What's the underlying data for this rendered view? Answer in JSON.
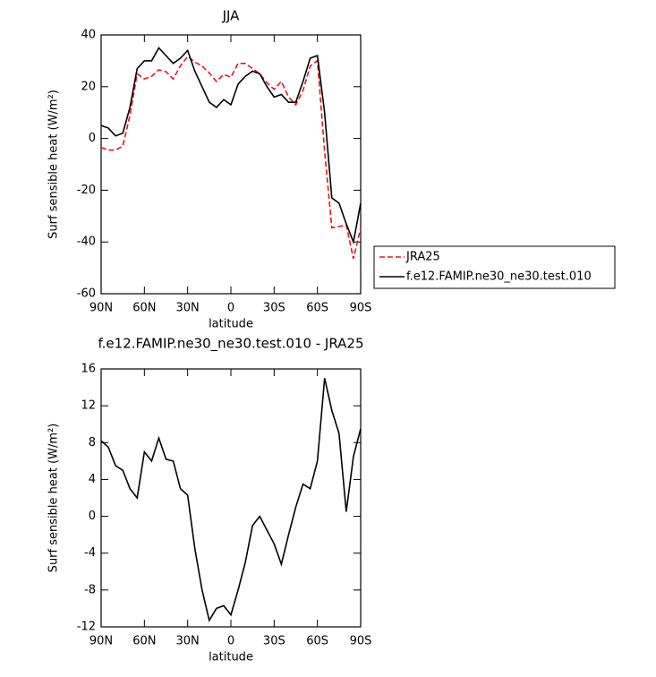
{
  "chart_data": [
    {
      "type": "line",
      "title": "JJA",
      "xlabel": "latitude",
      "ylabel": "Surf sensible heat (W/m²)",
      "x": [
        90,
        85,
        80,
        75,
        70,
        65,
        60,
        55,
        50,
        45,
        40,
        35,
        30,
        25,
        20,
        15,
        10,
        5,
        0,
        -5,
        -10,
        -15,
        -20,
        -25,
        -30,
        -35,
        -40,
        -45,
        -50,
        -55,
        -60,
        -65,
        -70,
        -75,
        -80,
        -85,
        -90
      ],
      "xlim": [
        90,
        -90
      ],
      "xticks": [
        {
          "value": 90,
          "label": "90N"
        },
        {
          "value": 60,
          "label": "60N"
        },
        {
          "value": 30,
          "label": "30N"
        },
        0,
        {
          "value": -30,
          "label": "30S"
        },
        {
          "value": -60,
          "label": "60S"
        },
        {
          "value": -90,
          "label": "90S"
        }
      ],
      "ylim": [
        -60,
        40
      ],
      "yticks": [
        -60,
        -40,
        -20,
        0,
        20,
        40
      ],
      "legend": "right",
      "series": [
        {
          "name": "JRA25",
          "color": "#e8151b",
          "linestyle": "dashed",
          "values": [
            -3.5,
            -4.5,
            -4.5,
            -3,
            9,
            25,
            23,
            24,
            26.5,
            25.8,
            23,
            28,
            31.7,
            29.5,
            28,
            25.3,
            22,
            24.7,
            23.7,
            29,
            29,
            27,
            25,
            21.5,
            19,
            22,
            16,
            13,
            18.5,
            28,
            30,
            -5,
            -34.5,
            -34,
            -33.5,
            -46.5,
            -34.5
          ]
        },
        {
          "name": "f.e12.FAMIP.ne30_ne30.test.010",
          "color": "#000000",
          "linestyle": "solid",
          "values": [
            5,
            4,
            1,
            2,
            12,
            27,
            30,
            30,
            35,
            32,
            29,
            31,
            34,
            26,
            20,
            14,
            12,
            15,
            13,
            21,
            24,
            26,
            25,
            20,
            16,
            17,
            14,
            14,
            22,
            31,
            32,
            10,
            -23,
            -25,
            -33,
            -40,
            -25
          ]
        }
      ]
    },
    {
      "type": "line",
      "title": "f.e12.FAMIP.ne30_ne30.test.010 - JRA25",
      "xlabel": "latitude",
      "ylabel": "Surf sensible heat (W/m²)",
      "x": [
        90,
        85,
        80,
        75,
        70,
        65,
        60,
        55,
        50,
        45,
        40,
        35,
        30,
        25,
        20,
        15,
        10,
        5,
        0,
        -5,
        -10,
        -15,
        -20,
        -25,
        -30,
        -35,
        -40,
        -45,
        -50,
        -55,
        -60,
        -65,
        -70,
        -75,
        -80,
        -85,
        -90
      ],
      "xlim": [
        90,
        -90
      ],
      "xticks": [
        {
          "value": 90,
          "label": "90N"
        },
        {
          "value": 60,
          "label": "60N"
        },
        {
          "value": 30,
          "label": "30N"
        },
        0,
        {
          "value": -30,
          "label": "30S"
        },
        {
          "value": -60,
          "label": "60S"
        },
        {
          "value": -90,
          "label": "90S"
        }
      ],
      "ylim": [
        -12,
        16
      ],
      "yticks": [
        -12,
        -8,
        -4,
        0,
        4,
        8,
        12,
        16
      ],
      "series": [
        {
          "color": "#000000",
          "linestyle": "solid",
          "values": [
            8.2,
            7.5,
            5.5,
            5,
            3,
            2,
            7,
            6,
            8.5,
            6.2,
            6,
            3,
            2.3,
            -3.5,
            -8,
            -11.3,
            -10,
            -9.7,
            -10.7,
            -8,
            -5,
            -1,
            0,
            -1.5,
            -3,
            -5.2,
            -2,
            1,
            3.5,
            3,
            6,
            15,
            11.5,
            9,
            0.5,
            6.5,
            9.5
          ]
        }
      ]
    }
  ]
}
